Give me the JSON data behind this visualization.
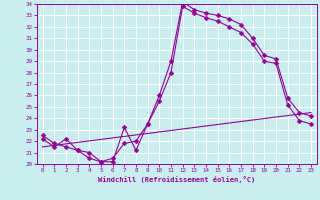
{
  "xlabel": "Windchill (Refroidissement éolien,°C)",
  "bg_color": "#c8eef0",
  "line_color": "#990099",
  "grid_color": "#ffffff",
  "xlim": [
    -0.5,
    23.5
  ],
  "ylim": [
    20,
    34
  ],
  "xticks": [
    0,
    1,
    2,
    3,
    4,
    5,
    6,
    7,
    8,
    9,
    10,
    11,
    12,
    13,
    14,
    15,
    16,
    17,
    18,
    19,
    20,
    21,
    22,
    23
  ],
  "yticks": [
    20,
    21,
    22,
    23,
    24,
    25,
    26,
    27,
    28,
    29,
    30,
    31,
    32,
    33,
    34
  ],
  "series1_x": [
    0,
    1,
    2,
    3,
    4,
    5,
    6,
    7,
    8,
    9,
    10,
    11,
    12,
    13,
    14,
    15,
    16,
    17,
    18,
    19,
    20,
    21,
    22,
    23
  ],
  "series1_y": [
    22.5,
    21.8,
    21.5,
    21.2,
    21.0,
    20.2,
    20.2,
    23.2,
    21.2,
    23.5,
    26.0,
    29.0,
    34.2,
    33.5,
    33.2,
    33.0,
    32.7,
    32.2,
    31.0,
    29.5,
    29.2,
    25.8,
    24.5,
    24.2
  ],
  "series2_x": [
    0,
    1,
    2,
    3,
    4,
    5,
    6,
    7,
    8,
    9,
    10,
    11,
    12,
    13,
    14,
    15,
    16,
    17,
    18,
    19,
    20,
    21,
    22,
    23
  ],
  "series2_y": [
    22.2,
    21.5,
    22.2,
    21.2,
    20.5,
    20.2,
    20.5,
    21.8,
    22.0,
    23.5,
    25.5,
    28.0,
    33.8,
    33.2,
    32.8,
    32.5,
    32.0,
    31.5,
    30.5,
    29.0,
    28.8,
    25.2,
    23.8,
    23.5
  ],
  "series3_x": [
    0,
    23
  ],
  "series3_y": [
    21.5,
    24.5
  ]
}
